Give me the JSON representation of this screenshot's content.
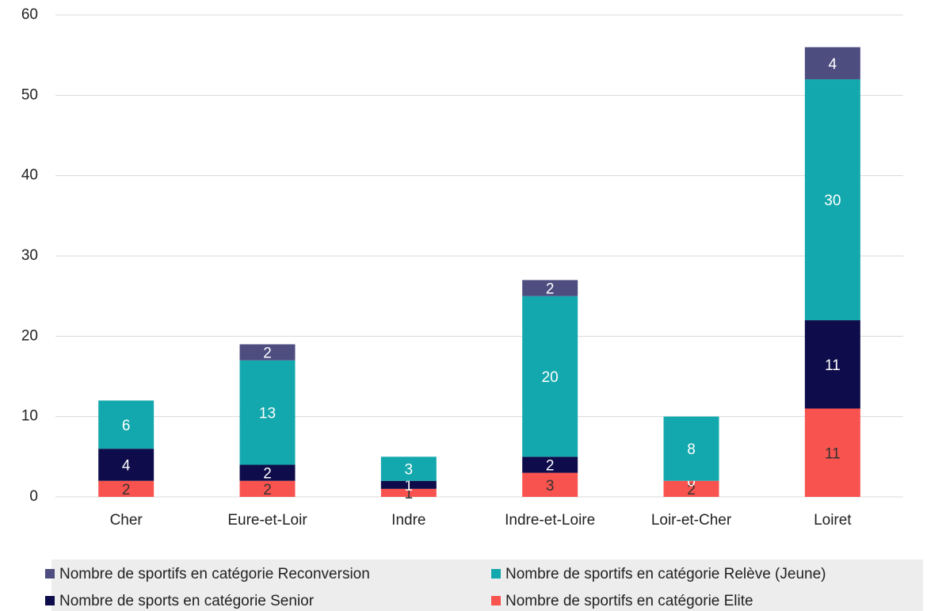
{
  "chart_data": {
    "type": "stacked_bar",
    "categories": [
      "Cher",
      "Eure-et-Loir",
      "Indre",
      "Indre-et-Loire",
      "Loir-et-Cher",
      "Loiret"
    ],
    "series": [
      {
        "name": "Nombre de sportifs en catégorie Elite",
        "color": "#f9534f",
        "values": [
          2,
          2,
          1,
          3,
          2,
          11
        ]
      },
      {
        "name": "Nombre de sports en catégorie Senior",
        "color": "#0e0c4a",
        "values": [
          4,
          2,
          1,
          2,
          0,
          11
        ]
      },
      {
        "name": "Nombre de sportifs en catégorie Relève (Jeune)",
        "color": "#13a8ad",
        "values": [
          6,
          13,
          3,
          20,
          8,
          30
        ]
      },
      {
        "name": "Nombre de sportifs en catégorie Reconversion",
        "color": "#4e4d80",
        "values": [
          null,
          2,
          null,
          2,
          null,
          4
        ]
      }
    ],
    "ylim": [
      0,
      60
    ],
    "yticks": [
      0,
      10,
      20,
      30,
      40,
      50,
      60
    ],
    "grid": true
  }
}
